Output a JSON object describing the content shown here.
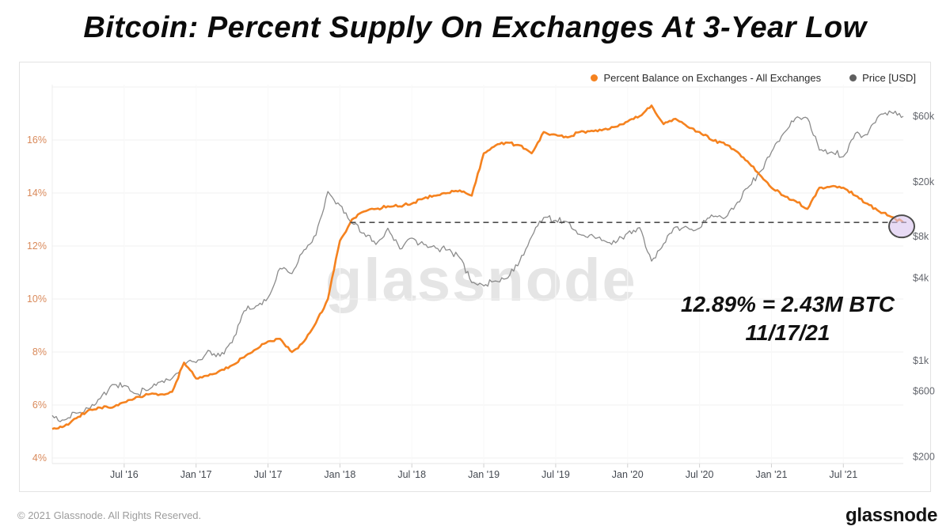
{
  "title": "Bitcoin: Percent Supply On Exchanges At 3-Year Low",
  "legend": {
    "series1_label": "Percent Balance on Exchanges - All Exchanges",
    "series2_label": "Price [USD]"
  },
  "watermark": "glassnode",
  "annotation": {
    "line1": "12.89% = 2.43M BTC",
    "line2": "11/17/21"
  },
  "footer": {
    "copyright": "© 2021 Glassnode. All Rights Reserved.",
    "logo_text": "glassnode"
  },
  "colors": {
    "orange_series": "#f5821f",
    "gray_series": "#8b8b8b",
    "dashed_line": "#4d4d4d",
    "ellipse_fill": "#d9c3ee",
    "ellipse_stroke": "#4d4d4d",
    "left_axis_labels": "#d98a5b",
    "right_axis_labels": "#63666d",
    "bottom_axis_labels": "#454a52",
    "gridline": "#f1f1f1",
    "axis_line": "#e4e4e4"
  },
  "chart_data": {
    "type": "line",
    "title": "Bitcoin: Percent Supply On Exchanges At 3-Year Low",
    "x_start": "2016-01",
    "x_end": "2021-11-17",
    "x_interval": "monthly (last point 11/17/21)",
    "x_tick_labels": [
      "Jul '16",
      "Jan '17",
      "Jul '17",
      "Jan '18",
      "Jul '18",
      "Jan '19",
      "Jul '19",
      "Jan '20",
      "Jul '20",
      "Jan '21",
      "Jul '21"
    ],
    "x_tick_month_indices": [
      6,
      12,
      18,
      24,
      30,
      36,
      42,
      48,
      54,
      60,
      66
    ],
    "left_axis": {
      "label": "Percent Balance on Exchanges",
      "scale": "linear",
      "unit": "%",
      "tick_values": [
        4,
        6,
        8,
        10,
        12,
        14,
        16
      ],
      "gridline_values": [
        4,
        6,
        8,
        10,
        12,
        14,
        16,
        18
      ],
      "range": [
        4,
        18
      ]
    },
    "right_axis": {
      "label": "Price [USD]",
      "scale": "log",
      "ticks": [
        {
          "label": "$200",
          "value": 200
        },
        {
          "label": "$600",
          "value": 600
        },
        {
          "label": "$1k",
          "value": 1000
        },
        {
          "label": "$4k",
          "value": 4000
        },
        {
          "label": "$8k",
          "value": 8000
        },
        {
          "label": "$20k",
          "value": 20000
        },
        {
          "label": "$60k",
          "value": 60000
        }
      ]
    },
    "dashed_level_pct": 12.89,
    "final_point": {
      "date": "11/17/21",
      "pct": 12.89,
      "btc": "2.43M BTC"
    },
    "series": [
      {
        "name": "Percent Balance on Exchanges - All Exchanges",
        "axis": "left",
        "color": "#f5821f",
        "values": [
          5.1,
          5.2,
          5.5,
          5.8,
          5.9,
          5.9,
          6.1,
          6.3,
          6.4,
          6.4,
          6.5,
          7.6,
          7.0,
          7.1,
          7.3,
          7.5,
          7.8,
          8.1,
          8.4,
          8.5,
          8.0,
          8.4,
          9.1,
          10.0,
          12.2,
          13.0,
          13.3,
          13.4,
          13.5,
          13.5,
          13.6,
          13.8,
          13.9,
          14.0,
          14.1,
          13.9,
          15.5,
          15.8,
          15.9,
          15.8,
          15.5,
          16.3,
          16.2,
          16.1,
          16.3,
          16.35,
          16.4,
          16.5,
          16.7,
          16.9,
          17.3,
          16.6,
          16.8,
          16.5,
          16.3,
          16.0,
          15.9,
          15.6,
          15.2,
          14.7,
          14.2,
          13.9,
          13.7,
          13.4,
          14.2,
          14.25,
          14.2,
          13.9,
          13.6,
          13.3,
          13.1,
          12.89
        ]
      },
      {
        "name": "Price [USD]",
        "axis": "right",
        "color": "#8b8b8b",
        "values": [
          400,
          370,
          415,
          450,
          530,
          670,
          660,
          575,
          610,
          700,
          745,
          960,
          970,
          1190,
          1080,
          1350,
          2300,
          2500,
          2870,
          4700,
          4300,
          6400,
          8200,
          17000,
          13500,
          10000,
          8500,
          7000,
          9200,
          6500,
          7800,
          7000,
          6600,
          6400,
          5600,
          3700,
          3500,
          3800,
          4000,
          5300,
          8000,
          11000,
          10500,
          10200,
          8300,
          8300,
          7500,
          7200,
          8500,
          9300,
          5300,
          7100,
          9400,
          9300,
          9200,
          11500,
          10800,
          13500,
          18000,
          23500,
          33000,
          45000,
          58000,
          58000,
          34000,
          33000,
          30500,
          45000,
          44000,
          61000,
          64000,
          60000
        ]
      }
    ]
  }
}
